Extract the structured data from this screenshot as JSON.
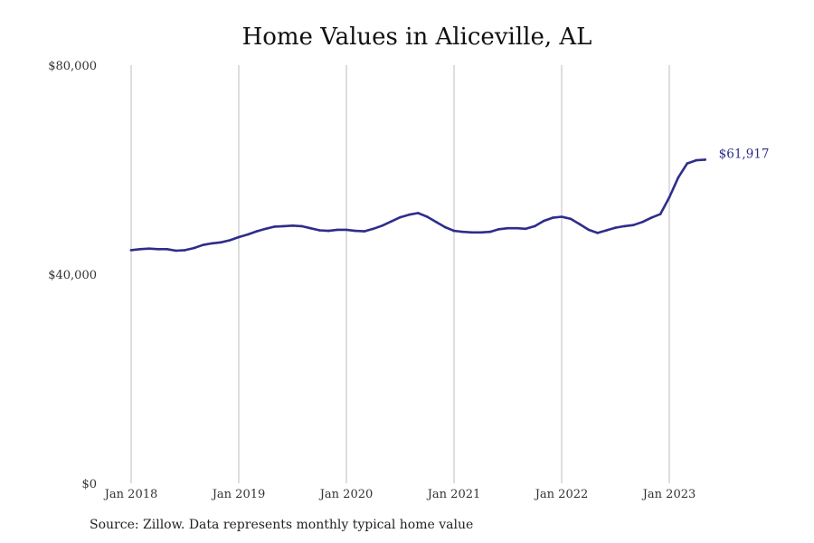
{
  "chart_data": {
    "type": "line",
    "title": "Home Values in Aliceville, AL",
    "xlabel": "",
    "ylabel": "",
    "xlim": [
      "2018-01",
      "2023-05"
    ],
    "ylim": [
      0,
      80000
    ],
    "yticks": [
      {
        "value": 0,
        "label": "$0"
      },
      {
        "value": 40000,
        "label": "$40,000"
      },
      {
        "value": 80000,
        "label": "$80,000"
      }
    ],
    "xticks": [
      {
        "value": "2018-01",
        "label": "Jan 2018"
      },
      {
        "value": "2019-01",
        "label": "Jan 2019"
      },
      {
        "value": "2020-01",
        "label": "Jan 2020"
      },
      {
        "value": "2021-01",
        "label": "Jan 2021"
      },
      {
        "value": "2022-01",
        "label": "Jan 2022"
      },
      {
        "value": "2023-01",
        "label": "Jan 2023"
      }
    ],
    "grid": "vertical",
    "series": [
      {
        "color": "#2e2d8c",
        "end_label": "$61,917",
        "points": [
          {
            "x": "2018-01",
            "y": 44600
          },
          {
            "x": "2018-02",
            "y": 44800
          },
          {
            "x": "2018-03",
            "y": 44900
          },
          {
            "x": "2018-04",
            "y": 44800
          },
          {
            "x": "2018-05",
            "y": 44800
          },
          {
            "x": "2018-06",
            "y": 44500
          },
          {
            "x": "2018-07",
            "y": 44600
          },
          {
            "x": "2018-08",
            "y": 45000
          },
          {
            "x": "2018-09",
            "y": 45600
          },
          {
            "x": "2018-10",
            "y": 45900
          },
          {
            "x": "2018-11",
            "y": 46100
          },
          {
            "x": "2018-12",
            "y": 46500
          },
          {
            "x": "2019-01",
            "y": 47100
          },
          {
            "x": "2019-02",
            "y": 47600
          },
          {
            "x": "2019-03",
            "y": 48200
          },
          {
            "x": "2019-04",
            "y": 48700
          },
          {
            "x": "2019-05",
            "y": 49100
          },
          {
            "x": "2019-06",
            "y": 49200
          },
          {
            "x": "2019-07",
            "y": 49300
          },
          {
            "x": "2019-08",
            "y": 49200
          },
          {
            "x": "2019-09",
            "y": 48800
          },
          {
            "x": "2019-10",
            "y": 48400
          },
          {
            "x": "2019-11",
            "y": 48300
          },
          {
            "x": "2019-12",
            "y": 48500
          },
          {
            "x": "2020-01",
            "y": 48500
          },
          {
            "x": "2020-02",
            "y": 48300
          },
          {
            "x": "2020-03",
            "y": 48200
          },
          {
            "x": "2020-04",
            "y": 48700
          },
          {
            "x": "2020-05",
            "y": 49300
          },
          {
            "x": "2020-06",
            "y": 50100
          },
          {
            "x": "2020-07",
            "y": 50900
          },
          {
            "x": "2020-08",
            "y": 51400
          },
          {
            "x": "2020-09",
            "y": 51700
          },
          {
            "x": "2020-10",
            "y": 51000
          },
          {
            "x": "2020-11",
            "y": 50000
          },
          {
            "x": "2020-12",
            "y": 49000
          },
          {
            "x": "2021-01",
            "y": 48300
          },
          {
            "x": "2021-02",
            "y": 48100
          },
          {
            "x": "2021-03",
            "y": 48000
          },
          {
            "x": "2021-04",
            "y": 48000
          },
          {
            "x": "2021-05",
            "y": 48100
          },
          {
            "x": "2021-06",
            "y": 48600
          },
          {
            "x": "2021-07",
            "y": 48800
          },
          {
            "x": "2021-08",
            "y": 48800
          },
          {
            "x": "2021-09",
            "y": 48700
          },
          {
            "x": "2021-10",
            "y": 49200
          },
          {
            "x": "2021-11",
            "y": 50200
          },
          {
            "x": "2021-12",
            "y": 50800
          },
          {
            "x": "2022-01",
            "y": 51000
          },
          {
            "x": "2022-02",
            "y": 50600
          },
          {
            "x": "2022-03",
            "y": 49600
          },
          {
            "x": "2022-04",
            "y": 48500
          },
          {
            "x": "2022-05",
            "y": 47900
          },
          {
            "x": "2022-06",
            "y": 48400
          },
          {
            "x": "2022-07",
            "y": 48900
          },
          {
            "x": "2022-08",
            "y": 49200
          },
          {
            "x": "2022-09",
            "y": 49400
          },
          {
            "x": "2022-10",
            "y": 50000
          },
          {
            "x": "2022-11",
            "y": 50800
          },
          {
            "x": "2022-12",
            "y": 51500
          },
          {
            "x": "2023-01",
            "y": 54700
          },
          {
            "x": "2023-02",
            "y": 58500
          },
          {
            "x": "2023-03",
            "y": 61200
          },
          {
            "x": "2023-04",
            "y": 61800
          },
          {
            "x": "2023-05",
            "y": 61917
          }
        ]
      }
    ],
    "source_note": "Source: Zillow. Data represents monthly typical home value"
  }
}
